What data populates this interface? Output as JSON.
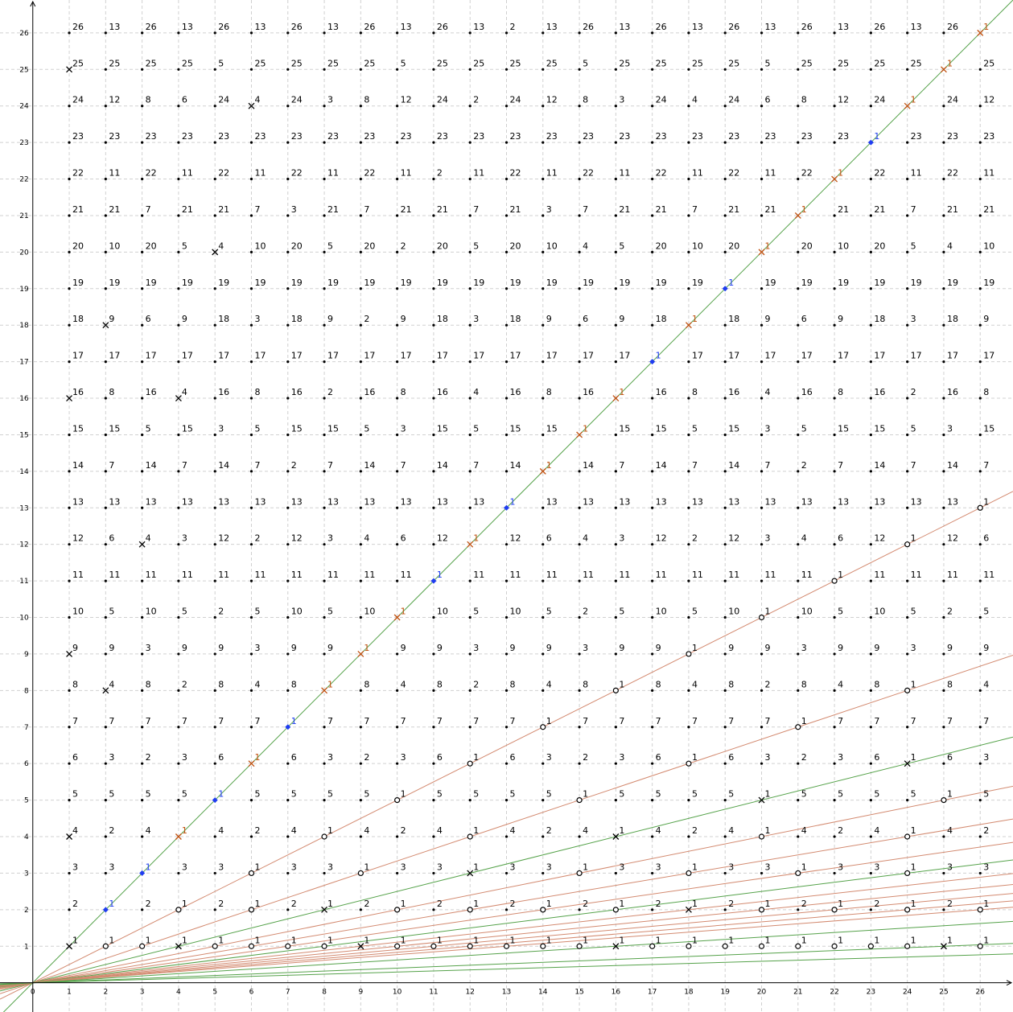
{
  "chart_data": {
    "type": "scatter",
    "title": "",
    "xlabel": "",
    "ylabel": "",
    "xlim": [
      -0.9,
      26.9
    ],
    "ylim": [
      -0.8,
      26.9
    ],
    "grid": true,
    "grid_style": "dashed",
    "x_ticks": [
      "0",
      "1",
      "2",
      "3",
      "4",
      "5",
      "6",
      "7",
      "8",
      "9",
      "10",
      "11",
      "12",
      "13",
      "14",
      "15",
      "16",
      "17",
      "18",
      "19",
      "20",
      "21",
      "22",
      "23",
      "24",
      "25",
      "26"
    ],
    "y_ticks": [
      "1",
      "2",
      "3",
      "4",
      "5",
      "6",
      "7",
      "8",
      "9",
      "10",
      "11",
      "12",
      "13",
      "14",
      "15",
      "16",
      "17",
      "18",
      "19",
      "20",
      "21",
      "22",
      "23",
      "24",
      "25",
      "26"
    ],
    "n": 26,
    "point_label_rule": "each lattice point (x, y) is labelled with y / gcd(x, y)",
    "colors": {
      "dot": "#000000",
      "black_marker": "#000000",
      "orange": "#c0500f",
      "blue": "#1f3cf0",
      "green": "#55a24a",
      "salmon": "#d38a70",
      "axis": "#000000",
      "grid": "#d0d0d0"
    },
    "rays": [
      {
        "slope": 1,
        "color": "green"
      },
      {
        "slope": 0.5,
        "color": "salmon"
      },
      {
        "slope": 0.3333333,
        "color": "salmon"
      },
      {
        "slope": 0.25,
        "color": "green"
      },
      {
        "slope": 0.2,
        "color": "salmon"
      },
      {
        "slope": 0.1666667,
        "color": "salmon"
      },
      {
        "slope": 0.1428571,
        "color": "salmon"
      },
      {
        "slope": 0.125,
        "color": "green"
      },
      {
        "slope": 0.1111111,
        "color": "salmon"
      },
      {
        "slope": 0.1,
        "color": "salmon"
      },
      {
        "slope": 0.0909091,
        "color": "salmon"
      },
      {
        "slope": 0.0833333,
        "color": "salmon"
      },
      {
        "slope": 0.0769231,
        "color": "salmon"
      },
      {
        "slope": 0.0625,
        "color": "green"
      },
      {
        "slope": 0.04,
        "color": "green"
      },
      {
        "slope": 0.0294118,
        "color": "green"
      }
    ],
    "marked_points": [
      {
        "x": 1,
        "y": 1,
        "marker": "x",
        "color": "black_marker"
      },
      {
        "x": 2,
        "y": 2,
        "marker": "diamond",
        "color": "blue"
      },
      {
        "x": 3,
        "y": 3,
        "marker": "diamond",
        "color": "blue"
      },
      {
        "x": 4,
        "y": 4,
        "marker": "x",
        "color": "orange"
      },
      {
        "x": 5,
        "y": 5,
        "marker": "diamond",
        "color": "blue"
      },
      {
        "x": 6,
        "y": 6,
        "marker": "x",
        "color": "orange"
      },
      {
        "x": 7,
        "y": 7,
        "marker": "diamond",
        "color": "blue"
      },
      {
        "x": 8,
        "y": 8,
        "marker": "x",
        "color": "orange"
      },
      {
        "x": 9,
        "y": 9,
        "marker": "x",
        "color": "orange"
      },
      {
        "x": 10,
        "y": 10,
        "marker": "x",
        "color": "orange"
      },
      {
        "x": 11,
        "y": 11,
        "marker": "diamond",
        "color": "blue"
      },
      {
        "x": 12,
        "y": 12,
        "marker": "x",
        "color": "orange"
      },
      {
        "x": 13,
        "y": 13,
        "marker": "diamond",
        "color": "blue"
      },
      {
        "x": 14,
        "y": 14,
        "marker": "x",
        "color": "orange"
      },
      {
        "x": 15,
        "y": 15,
        "marker": "x",
        "color": "orange"
      },
      {
        "x": 16,
        "y": 16,
        "marker": "x",
        "color": "orange"
      },
      {
        "x": 17,
        "y": 17,
        "marker": "diamond",
        "color": "blue"
      },
      {
        "x": 18,
        "y": 18,
        "marker": "x",
        "color": "orange"
      },
      {
        "x": 19,
        "y": 19,
        "marker": "diamond",
        "color": "blue"
      },
      {
        "x": 20,
        "y": 20,
        "marker": "x",
        "color": "orange"
      },
      {
        "x": 21,
        "y": 21,
        "marker": "x",
        "color": "orange"
      },
      {
        "x": 22,
        "y": 22,
        "marker": "x",
        "color": "orange"
      },
      {
        "x": 23,
        "y": 23,
        "marker": "diamond",
        "color": "blue"
      },
      {
        "x": 24,
        "y": 24,
        "marker": "x",
        "color": "orange"
      },
      {
        "x": 25,
        "y": 25,
        "marker": "x",
        "color": "orange"
      },
      {
        "x": 26,
        "y": 26,
        "marker": "x",
        "color": "orange"
      },
      {
        "x": 1,
        "y": 4,
        "marker": "x",
        "color": "black_marker"
      },
      {
        "x": 1,
        "y": 9,
        "marker": "x",
        "color": "black_marker"
      },
      {
        "x": 1,
        "y": 16,
        "marker": "x",
        "color": "black_marker"
      },
      {
        "x": 1,
        "y": 25,
        "marker": "x",
        "color": "black_marker"
      },
      {
        "x": 2,
        "y": 8,
        "marker": "x",
        "color": "black_marker"
      },
      {
        "x": 2,
        "y": 18,
        "marker": "x",
        "color": "black_marker"
      },
      {
        "x": 3,
        "y": 12,
        "marker": "x",
        "color": "black_marker"
      },
      {
        "x": 4,
        "y": 16,
        "marker": "x",
        "color": "black_marker"
      },
      {
        "x": 5,
        "y": 20,
        "marker": "x",
        "color": "black_marker"
      },
      {
        "x": 6,
        "y": 24,
        "marker": "x",
        "color": "black_marker"
      },
      {
        "x": 4,
        "y": 1,
        "marker": "x",
        "color": "black_marker"
      },
      {
        "x": 9,
        "y": 1,
        "marker": "x",
        "color": "black_marker"
      },
      {
        "x": 16,
        "y": 1,
        "marker": "x",
        "color": "black_marker"
      },
      {
        "x": 25,
        "y": 1,
        "marker": "x",
        "color": "black_marker"
      },
      {
        "x": 8,
        "y": 2,
        "marker": "x",
        "color": "black_marker"
      },
      {
        "x": 18,
        "y": 2,
        "marker": "x",
        "color": "black_marker"
      },
      {
        "x": 12,
        "y": 3,
        "marker": "x",
        "color": "black_marker"
      },
      {
        "x": 16,
        "y": 4,
        "marker": "x",
        "color": "black_marker"
      },
      {
        "x": 20,
        "y": 5,
        "marker": "x",
        "color": "black_marker"
      },
      {
        "x": 24,
        "y": 6,
        "marker": "x",
        "color": "black_marker"
      },
      {
        "x": 2,
        "y": 1,
        "marker": "circle",
        "color": "black_marker"
      },
      {
        "x": 3,
        "y": 1,
        "marker": "circle",
        "color": "black_marker"
      },
      {
        "x": 5,
        "y": 1,
        "marker": "circle",
        "color": "black_marker"
      },
      {
        "x": 6,
        "y": 1,
        "marker": "circle",
        "color": "black_marker"
      },
      {
        "x": 7,
        "y": 1,
        "marker": "circle",
        "color": "black_marker"
      },
      {
        "x": 8,
        "y": 1,
        "marker": "circle",
        "color": "black_marker"
      },
      {
        "x": 10,
        "y": 1,
        "marker": "circle",
        "color": "black_marker"
      },
      {
        "x": 11,
        "y": 1,
        "marker": "circle",
        "color": "black_marker"
      },
      {
        "x": 12,
        "y": 1,
        "marker": "circle",
        "color": "black_marker"
      },
      {
        "x": 13,
        "y": 1,
        "marker": "circle",
        "color": "black_marker"
      },
      {
        "x": 14,
        "y": 1,
        "marker": "circle",
        "color": "black_marker"
      },
      {
        "x": 15,
        "y": 1,
        "marker": "circle",
        "color": "black_marker"
      },
      {
        "x": 17,
        "y": 1,
        "marker": "circle",
        "color": "black_marker"
      },
      {
        "x": 18,
        "y": 1,
        "marker": "circle",
        "color": "black_marker"
      },
      {
        "x": 19,
        "y": 1,
        "marker": "circle",
        "color": "black_marker"
      },
      {
        "x": 20,
        "y": 1,
        "marker": "circle",
        "color": "black_marker"
      },
      {
        "x": 21,
        "y": 1,
        "marker": "circle",
        "color": "black_marker"
      },
      {
        "x": 22,
        "y": 1,
        "marker": "circle",
        "color": "black_marker"
      },
      {
        "x": 23,
        "y": 1,
        "marker": "circle",
        "color": "black_marker"
      },
      {
        "x": 24,
        "y": 1,
        "marker": "circle",
        "color": "black_marker"
      },
      {
        "x": 26,
        "y": 1,
        "marker": "circle",
        "color": "black_marker"
      },
      {
        "x": 4,
        "y": 2,
        "marker": "circle",
        "color": "black_marker"
      },
      {
        "x": 6,
        "y": 2,
        "marker": "circle",
        "color": "black_marker"
      },
      {
        "x": 10,
        "y": 2,
        "marker": "circle",
        "color": "black_marker"
      },
      {
        "x": 12,
        "y": 2,
        "marker": "circle",
        "color": "black_marker"
      },
      {
        "x": 14,
        "y": 2,
        "marker": "circle",
        "color": "black_marker"
      },
      {
        "x": 16,
        "y": 2,
        "marker": "circle",
        "color": "black_marker"
      },
      {
        "x": 20,
        "y": 2,
        "marker": "circle",
        "color": "black_marker"
      },
      {
        "x": 22,
        "y": 2,
        "marker": "circle",
        "color": "black_marker"
      },
      {
        "x": 24,
        "y": 2,
        "marker": "circle",
        "color": "black_marker"
      },
      {
        "x": 26,
        "y": 2,
        "marker": "circle",
        "color": "black_marker"
      },
      {
        "x": 6,
        "y": 3,
        "marker": "circle",
        "color": "black_marker"
      },
      {
        "x": 9,
        "y": 3,
        "marker": "circle",
        "color": "black_marker"
      },
      {
        "x": 15,
        "y": 3,
        "marker": "circle",
        "color": "black_marker"
      },
      {
        "x": 18,
        "y": 3,
        "marker": "circle",
        "color": "black_marker"
      },
      {
        "x": 21,
        "y": 3,
        "marker": "circle",
        "color": "black_marker"
      },
      {
        "x": 24,
        "y": 3,
        "marker": "circle",
        "color": "black_marker"
      },
      {
        "x": 8,
        "y": 4,
        "marker": "circle",
        "color": "black_marker"
      },
      {
        "x": 12,
        "y": 4,
        "marker": "circle",
        "color": "black_marker"
      },
      {
        "x": 20,
        "y": 4,
        "marker": "circle",
        "color": "black_marker"
      },
      {
        "x": 24,
        "y": 4,
        "marker": "circle",
        "color": "black_marker"
      },
      {
        "x": 10,
        "y": 5,
        "marker": "circle",
        "color": "black_marker"
      },
      {
        "x": 15,
        "y": 5,
        "marker": "circle",
        "color": "black_marker"
      },
      {
        "x": 25,
        "y": 5,
        "marker": "circle",
        "color": "black_marker"
      },
      {
        "x": 12,
        "y": 6,
        "marker": "circle",
        "color": "black_marker"
      },
      {
        "x": 18,
        "y": 6,
        "marker": "circle",
        "color": "black_marker"
      },
      {
        "x": 14,
        "y": 7,
        "marker": "circle",
        "color": "black_marker"
      },
      {
        "x": 21,
        "y": 7,
        "marker": "circle",
        "color": "black_marker"
      },
      {
        "x": 16,
        "y": 8,
        "marker": "circle",
        "color": "black_marker"
      },
      {
        "x": 24,
        "y": 8,
        "marker": "circle",
        "color": "black_marker"
      },
      {
        "x": 18,
        "y": 9,
        "marker": "circle",
        "color": "black_marker"
      },
      {
        "x": 20,
        "y": 10,
        "marker": "circle",
        "color": "black_marker"
      },
      {
        "x": 22,
        "y": 11,
        "marker": "circle",
        "color": "black_marker"
      },
      {
        "x": 24,
        "y": 12,
        "marker": "circle",
        "color": "black_marker"
      },
      {
        "x": 26,
        "y": 13,
        "marker": "circle",
        "color": "black_marker"
      }
    ]
  }
}
